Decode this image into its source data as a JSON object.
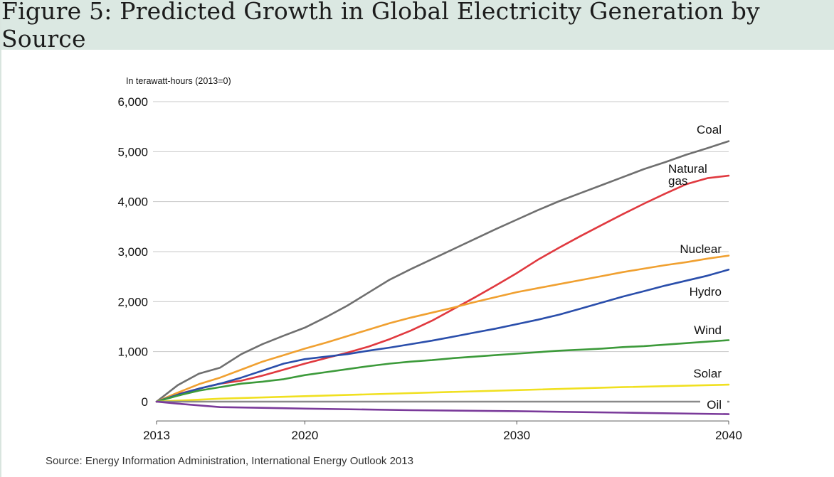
{
  "title": "Figure 5: Predicted Growth in Global Electricity Generation by Source",
  "source": "Source: Energy Information Administration, International Energy Outlook 2013",
  "chart_data": {
    "type": "line",
    "ylabel": "In terawatt-hours (2013=0)",
    "xlim": [
      2013,
      2040
    ],
    "ylim": [
      -300,
      6000
    ],
    "x_ticks": [
      2013,
      2020,
      2030,
      2040
    ],
    "x_tick_labels": [
      "2013",
      "2020",
      "2030",
      "2040"
    ],
    "y_ticks": [
      0,
      1000,
      2000,
      3000,
      4000,
      5000,
      6000
    ],
    "y_tick_labels": [
      "0",
      "1,000",
      "2,000",
      "3,000",
      "4,000",
      "5,000",
      "6,000"
    ],
    "grid": true,
    "series": [
      {
        "name": "Coal",
        "color": "#6f6f6f",
        "points": [
          [
            2013,
            0
          ],
          [
            2014,
            330
          ],
          [
            2015,
            560
          ],
          [
            2016,
            680
          ],
          [
            2017,
            950
          ],
          [
            2018,
            1150
          ],
          [
            2019,
            1320
          ],
          [
            2020,
            1480
          ],
          [
            2021,
            1690
          ],
          [
            2022,
            1920
          ],
          [
            2023,
            2180
          ],
          [
            2024,
            2440
          ],
          [
            2025,
            2650
          ],
          [
            2026,
            2850
          ],
          [
            2027,
            3050
          ],
          [
            2028,
            3250
          ],
          [
            2029,
            3450
          ],
          [
            2030,
            3640
          ],
          [
            2031,
            3830
          ],
          [
            2032,
            4010
          ],
          [
            2033,
            4170
          ],
          [
            2034,
            4330
          ],
          [
            2035,
            4490
          ],
          [
            2036,
            4650
          ],
          [
            2037,
            4790
          ],
          [
            2038,
            4940
          ],
          [
            2039,
            5070
          ],
          [
            2040,
            5210
          ]
        ]
      },
      {
        "name": "Natural gas",
        "color": "#e0393f",
        "points": [
          [
            2013,
            0
          ],
          [
            2014,
            150
          ],
          [
            2015,
            260
          ],
          [
            2016,
            360
          ],
          [
            2017,
            420
          ],
          [
            2018,
            520
          ],
          [
            2019,
            640
          ],
          [
            2020,
            760
          ],
          [
            2021,
            870
          ],
          [
            2022,
            980
          ],
          [
            2023,
            1100
          ],
          [
            2024,
            1250
          ],
          [
            2025,
            1420
          ],
          [
            2026,
            1620
          ],
          [
            2027,
            1850
          ],
          [
            2028,
            2080
          ],
          [
            2029,
            2320
          ],
          [
            2030,
            2570
          ],
          [
            2031,
            2840
          ],
          [
            2032,
            3080
          ],
          [
            2033,
            3310
          ],
          [
            2034,
            3530
          ],
          [
            2035,
            3750
          ],
          [
            2036,
            3960
          ],
          [
            2037,
            4160
          ],
          [
            2038,
            4350
          ],
          [
            2039,
            4470
          ],
          [
            2040,
            4520
          ]
        ]
      },
      {
        "name": "Nuclear",
        "color": "#f0a030",
        "points": [
          [
            2013,
            0
          ],
          [
            2014,
            180
          ],
          [
            2015,
            350
          ],
          [
            2016,
            480
          ],
          [
            2017,
            640
          ],
          [
            2018,
            800
          ],
          [
            2019,
            930
          ],
          [
            2020,
            1060
          ],
          [
            2021,
            1180
          ],
          [
            2022,
            1310
          ],
          [
            2023,
            1440
          ],
          [
            2024,
            1570
          ],
          [
            2025,
            1680
          ],
          [
            2026,
            1780
          ],
          [
            2027,
            1880
          ],
          [
            2028,
            1990
          ],
          [
            2029,
            2090
          ],
          [
            2030,
            2190
          ],
          [
            2031,
            2270
          ],
          [
            2032,
            2350
          ],
          [
            2033,
            2430
          ],
          [
            2034,
            2510
          ],
          [
            2035,
            2590
          ],
          [
            2036,
            2660
          ],
          [
            2037,
            2730
          ],
          [
            2038,
            2790
          ],
          [
            2039,
            2860
          ],
          [
            2040,
            2920
          ]
        ]
      },
      {
        "name": "Hydro",
        "color": "#2a4eab",
        "points": [
          [
            2013,
            0
          ],
          [
            2014,
            140
          ],
          [
            2015,
            260
          ],
          [
            2016,
            360
          ],
          [
            2017,
            480
          ],
          [
            2018,
            620
          ],
          [
            2019,
            760
          ],
          [
            2020,
            850
          ],
          [
            2021,
            900
          ],
          [
            2022,
            950
          ],
          [
            2023,
            1020
          ],
          [
            2024,
            1080
          ],
          [
            2025,
            1150
          ],
          [
            2026,
            1220
          ],
          [
            2027,
            1300
          ],
          [
            2028,
            1380
          ],
          [
            2029,
            1460
          ],
          [
            2030,
            1550
          ],
          [
            2031,
            1640
          ],
          [
            2032,
            1740
          ],
          [
            2033,
            1860
          ],
          [
            2034,
            1980
          ],
          [
            2035,
            2100
          ],
          [
            2036,
            2210
          ],
          [
            2037,
            2320
          ],
          [
            2038,
            2420
          ],
          [
            2039,
            2520
          ],
          [
            2040,
            2640
          ]
        ]
      },
      {
        "name": "Wind",
        "color": "#3c9a3a",
        "points": [
          [
            2013,
            0
          ],
          [
            2014,
            120
          ],
          [
            2015,
            220
          ],
          [
            2016,
            290
          ],
          [
            2017,
            360
          ],
          [
            2018,
            400
          ],
          [
            2019,
            450
          ],
          [
            2020,
            530
          ],
          [
            2021,
            590
          ],
          [
            2022,
            650
          ],
          [
            2023,
            710
          ],
          [
            2024,
            760
          ],
          [
            2025,
            800
          ],
          [
            2026,
            830
          ],
          [
            2027,
            870
          ],
          [
            2028,
            900
          ],
          [
            2029,
            930
          ],
          [
            2030,
            960
          ],
          [
            2031,
            990
          ],
          [
            2032,
            1020
          ],
          [
            2033,
            1040
          ],
          [
            2034,
            1060
          ],
          [
            2035,
            1090
          ],
          [
            2036,
            1110
          ],
          [
            2037,
            1140
          ],
          [
            2038,
            1170
          ],
          [
            2039,
            1200
          ],
          [
            2040,
            1230
          ]
        ]
      },
      {
        "name": "Solar",
        "color": "#f0e020",
        "points": [
          [
            2013,
            0
          ],
          [
            2016,
            60
          ],
          [
            2020,
            110
          ],
          [
            2025,
            170
          ],
          [
            2030,
            230
          ],
          [
            2035,
            290
          ],
          [
            2040,
            340
          ]
        ]
      },
      {
        "name": "Oil",
        "color": "#8a8a8a",
        "points": [
          [
            2013,
            0
          ],
          [
            2040,
            0
          ]
        ]
      },
      {
        "name": "Oil",
        "color": "#7a3a9a",
        "points": [
          [
            2013,
            0
          ],
          [
            2014,
            -40
          ],
          [
            2016,
            -110
          ],
          [
            2020,
            -140
          ],
          [
            2025,
            -170
          ],
          [
            2030,
            -190
          ],
          [
            2035,
            -220
          ],
          [
            2040,
            -250
          ]
        ]
      }
    ],
    "series_labels": [
      {
        "lines": [
          "Coal"
        ]
      },
      {
        "lines": [
          "Natural",
          "gas"
        ]
      },
      {
        "lines": [
          "Nuclear"
        ]
      },
      {
        "lines": [
          "Hydro"
        ]
      },
      {
        "lines": [
          "Wind"
        ]
      },
      {
        "lines": [
          "Solar"
        ]
      },
      {
        "lines": [
          "Oil"
        ]
      }
    ]
  }
}
